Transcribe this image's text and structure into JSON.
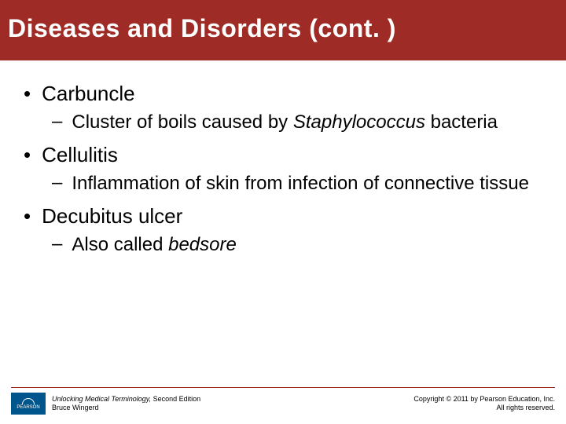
{
  "colors": {
    "title_bg": "#9e2b25",
    "title_text": "#ffffff",
    "body_text": "#000000",
    "footer_line": "#9e2b25",
    "logo_bg": "#00558c",
    "page_bg": "#ffffff"
  },
  "typography": {
    "title_fontsize": 32,
    "bullet1_fontsize": 26,
    "bullet2_fontsize": 24,
    "footer_fontsize": 9,
    "font_family": "Arial"
  },
  "title": "Diseases and Disorders (cont. )",
  "bullets": [
    {
      "term": "Carbuncle",
      "sub_pre": "Cluster of boils caused by ",
      "sub_ital": "Staphylococcus",
      "sub_post": " bacteria"
    },
    {
      "term": "Cellulitis",
      "sub_pre": "Inflammation of skin from infection of connective tissue",
      "sub_ital": "",
      "sub_post": ""
    },
    {
      "term": "Decubitus ulcer",
      "sub_pre": "Also called ",
      "sub_ital": "bedsore",
      "sub_post": ""
    }
  ],
  "footer": {
    "logo_text": "PEARSON",
    "book_title_pre": "Unlocking Medical Terminology,",
    "book_title_post": " Second Edition",
    "author": "Bruce Wingerd",
    "copyright_line1": "Copyright © 2011 by Pearson Education, Inc.",
    "copyright_line2": "All rights reserved."
  }
}
